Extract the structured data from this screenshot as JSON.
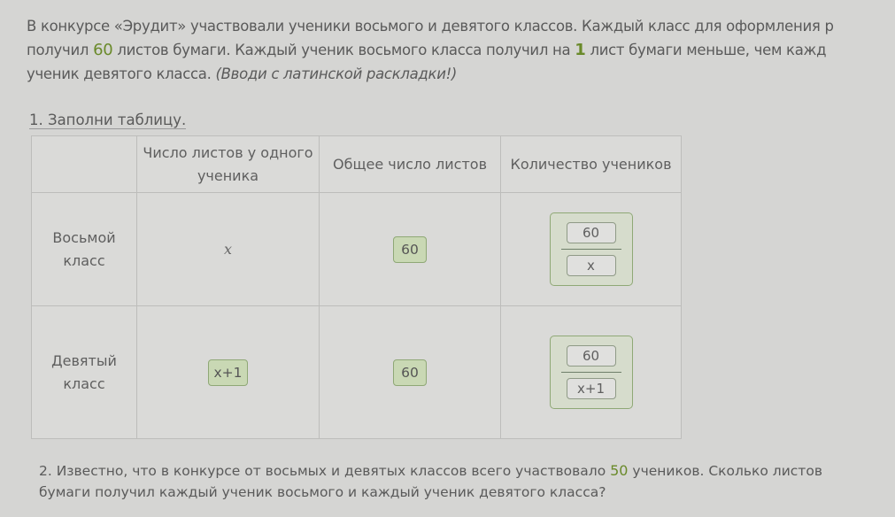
{
  "problem": {
    "line1": "В конкурсе «Эрудит» участвовали ученики восьмого и девятого классов. Каждый класс для оформления р",
    "line2_a": "получил ",
    "line2_num": "60",
    "line2_b": " листов бумаги. Каждый ученик восьмого класса получил на ",
    "line2_num2": "1",
    "line2_c": " лист бумаги меньше, чем кажд",
    "line3_a": "ученик девятого класса. ",
    "line3_hint": "(Вводи с латинской раскладки!)"
  },
  "task1": "1. Заполни таблицу.",
  "table": {
    "headers": [
      "",
      "Число листов у одного ученика",
      "Общее число листов",
      "Количество учеников"
    ],
    "rows": [
      {
        "label": "Восьмой класс",
        "per_student": "x",
        "total": "60",
        "count_num": "60",
        "count_den": "x"
      },
      {
        "label": "Девятый класс",
        "per_student": "x+1",
        "total": "60",
        "count_num": "60",
        "count_den": "x+1"
      }
    ]
  },
  "task2_a": "2. Известно, что в конкурсе от восьмых и девятых классов всего участвовало ",
  "task2_num": "50",
  "task2_b": " учеников. Сколько листов",
  "task2_c": "бумаги получил каждый ученик восьмого и каждый ученик девятого класса?"
}
